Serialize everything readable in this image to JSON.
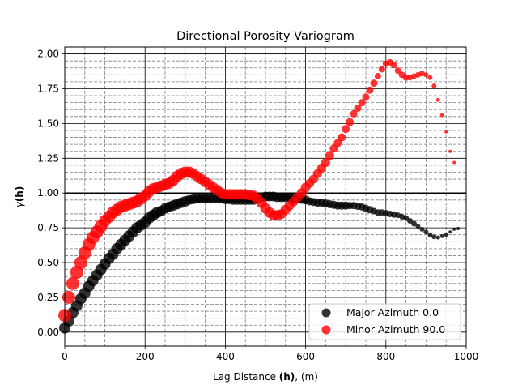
{
  "chart_data": {
    "type": "scatter",
    "title": "Directional Porosity Variogram",
    "xlabel_prefix": "Lag Distance ",
    "xlabel_bold": "(h)",
    "xlabel_suffix": ", (m)",
    "ylabel_prefix": "γ",
    "ylabel_bold": "(h)",
    "xlim": [
      0,
      1000
    ],
    "ylim": [
      -0.1,
      2.05
    ],
    "x_ticks": [
      0,
      200,
      400,
      600,
      800,
      1000
    ],
    "x_tick_labels": [
      "0",
      "200",
      "400",
      "600",
      "800",
      "1000"
    ],
    "y_ticks": [
      0.0,
      0.25,
      0.5,
      0.75,
      1.0,
      1.25,
      1.5,
      1.75,
      2.0
    ],
    "y_tick_labels": [
      "0.00",
      "0.25",
      "0.50",
      "0.75",
      "1.00",
      "1.25",
      "1.50",
      "1.75",
      "2.00"
    ],
    "grid": true,
    "sill": 1.0,
    "legend_position": "bottom-right",
    "series": [
      {
        "name": "Major Azimuth 0.0",
        "color": "#000000",
        "x": [
          0,
          10,
          20,
          30,
          40,
          50,
          60,
          70,
          80,
          90,
          100,
          110,
          120,
          130,
          140,
          150,
          160,
          170,
          180,
          190,
          200,
          210,
          220,
          230,
          240,
          250,
          260,
          270,
          280,
          290,
          300,
          310,
          320,
          330,
          340,
          350,
          360,
          370,
          380,
          390,
          400,
          410,
          420,
          430,
          440,
          450,
          460,
          470,
          480,
          490,
          500,
          510,
          520,
          530,
          540,
          550,
          560,
          570,
          580,
          590,
          600,
          610,
          620,
          630,
          640,
          650,
          660,
          670,
          680,
          690,
          700,
          710,
          720,
          730,
          740,
          750,
          760,
          770,
          780,
          790,
          800,
          810,
          820,
          830,
          840,
          850,
          860,
          870,
          880,
          890,
          900,
          910,
          920,
          930,
          940,
          950,
          960,
          970,
          980
        ],
        "y": [
          0.03,
          0.08,
          0.14,
          0.19,
          0.24,
          0.28,
          0.33,
          0.37,
          0.41,
          0.45,
          0.49,
          0.53,
          0.56,
          0.6,
          0.63,
          0.66,
          0.69,
          0.72,
          0.75,
          0.77,
          0.79,
          0.82,
          0.84,
          0.86,
          0.87,
          0.89,
          0.9,
          0.91,
          0.92,
          0.93,
          0.94,
          0.95,
          0.955,
          0.96,
          0.96,
          0.96,
          0.96,
          0.96,
          0.96,
          0.96,
          0.955,
          0.955,
          0.95,
          0.95,
          0.95,
          0.95,
          0.95,
          0.95,
          0.96,
          0.97,
          0.975,
          0.975,
          0.975,
          0.97,
          0.97,
          0.97,
          0.965,
          0.96,
          0.96,
          0.955,
          0.95,
          0.94,
          0.935,
          0.93,
          0.93,
          0.925,
          0.92,
          0.915,
          0.91,
          0.91,
          0.91,
          0.91,
          0.91,
          0.905,
          0.9,
          0.89,
          0.88,
          0.87,
          0.86,
          0.86,
          0.855,
          0.85,
          0.845,
          0.84,
          0.83,
          0.82,
          0.8,
          0.78,
          0.76,
          0.74,
          0.72,
          0.7,
          0.685,
          0.68,
          0.69,
          0.7,
          0.72,
          0.74,
          0.745
        ],
        "sizes": [
          7,
          7,
          7,
          7,
          7,
          7,
          7,
          7,
          7,
          7,
          7,
          7,
          7,
          7,
          7,
          7,
          7,
          7,
          7,
          7,
          7,
          7,
          7,
          7,
          6.5,
          6.5,
          6.5,
          6.5,
          6.5,
          6.5,
          6.5,
          6,
          6,
          6,
          6,
          6,
          6,
          6,
          6,
          6,
          6,
          6,
          6,
          6,
          6,
          6,
          6,
          6,
          6,
          6,
          6,
          6,
          6,
          6,
          6,
          6,
          5.5,
          5.5,
          5.5,
          5.5,
          5.5,
          5,
          5,
          5,
          5,
          5,
          5,
          5,
          5,
          5,
          5,
          4.5,
          4.5,
          4.5,
          4.5,
          4.5,
          4.5,
          4,
          4,
          4,
          4,
          4,
          4,
          3.5,
          3.5,
          3.5,
          3.5,
          3.5,
          3,
          3,
          3,
          3,
          3,
          2.5,
          2.5,
          2.5,
          2,
          2,
          2
        ]
      },
      {
        "name": "Minor Azimuth 90.0",
        "color": "#ff0000",
        "x": [
          0,
          10,
          20,
          30,
          40,
          50,
          60,
          70,
          80,
          90,
          100,
          110,
          120,
          130,
          140,
          150,
          160,
          170,
          180,
          190,
          200,
          210,
          220,
          230,
          240,
          250,
          260,
          270,
          280,
          290,
          300,
          310,
          320,
          330,
          340,
          350,
          360,
          370,
          380,
          390,
          400,
          410,
          420,
          430,
          440,
          450,
          460,
          470,
          480,
          490,
          500,
          510,
          520,
          530,
          540,
          550,
          560,
          570,
          580,
          590,
          600,
          610,
          620,
          630,
          640,
          650,
          660,
          670,
          680,
          690,
          700,
          710,
          720,
          730,
          740,
          750,
          760,
          770,
          780,
          790,
          800,
          810,
          820,
          830,
          840,
          850,
          860,
          870,
          880,
          890,
          900,
          910,
          920,
          930,
          940,
          950,
          960,
          970
        ],
        "y": [
          0.12,
          0.25,
          0.35,
          0.43,
          0.5,
          0.57,
          0.63,
          0.68,
          0.72,
          0.76,
          0.8,
          0.83,
          0.86,
          0.88,
          0.9,
          0.91,
          0.92,
          0.93,
          0.94,
          0.96,
          0.98,
          1.01,
          1.03,
          1.04,
          1.05,
          1.06,
          1.07,
          1.09,
          1.12,
          1.14,
          1.15,
          1.15,
          1.14,
          1.12,
          1.1,
          1.08,
          1.06,
          1.04,
          1.02,
          1.0,
          0.99,
          0.99,
          0.99,
          0.99,
          0.99,
          0.99,
          0.985,
          0.98,
          0.96,
          0.93,
          0.89,
          0.86,
          0.84,
          0.84,
          0.85,
          0.88,
          0.91,
          0.94,
          0.97,
          1.0,
          1.04,
          1.07,
          1.1,
          1.14,
          1.18,
          1.22,
          1.27,
          1.32,
          1.36,
          1.4,
          1.46,
          1.51,
          1.57,
          1.61,
          1.65,
          1.69,
          1.74,
          1.79,
          1.84,
          1.89,
          1.93,
          1.94,
          1.92,
          1.88,
          1.85,
          1.83,
          1.83,
          1.84,
          1.85,
          1.86,
          1.85,
          1.83,
          1.77,
          1.67,
          1.56,
          1.44,
          1.3,
          1.22
        ],
        "sizes": [
          8,
          8,
          8,
          8,
          8,
          8,
          8,
          8,
          8,
          8,
          7.5,
          7.5,
          7.5,
          7.5,
          7.5,
          7.5,
          7.5,
          7.5,
          7.5,
          7.5,
          7,
          7,
          7,
          7,
          7,
          7,
          7,
          7,
          7,
          7,
          7,
          7,
          6.5,
          6.5,
          6.5,
          6.5,
          6.5,
          6.5,
          6.5,
          6.5,
          6.5,
          6.5,
          6.5,
          6.5,
          6.5,
          6.5,
          6.5,
          6.5,
          6.5,
          6.5,
          6.5,
          6.5,
          6.5,
          6.5,
          6,
          6,
          6,
          6,
          6,
          6,
          6,
          5.5,
          5.5,
          5.5,
          5.5,
          5.5,
          5.5,
          5,
          5,
          5,
          5,
          5,
          4.5,
          4.5,
          4.5,
          4.5,
          4.5,
          4.5,
          4,
          4,
          4,
          4,
          4,
          4,
          4,
          4,
          3.5,
          3.5,
          3.5,
          3.5,
          3,
          3,
          3,
          2.5,
          2.5,
          2,
          2,
          2
        ]
      }
    ]
  }
}
